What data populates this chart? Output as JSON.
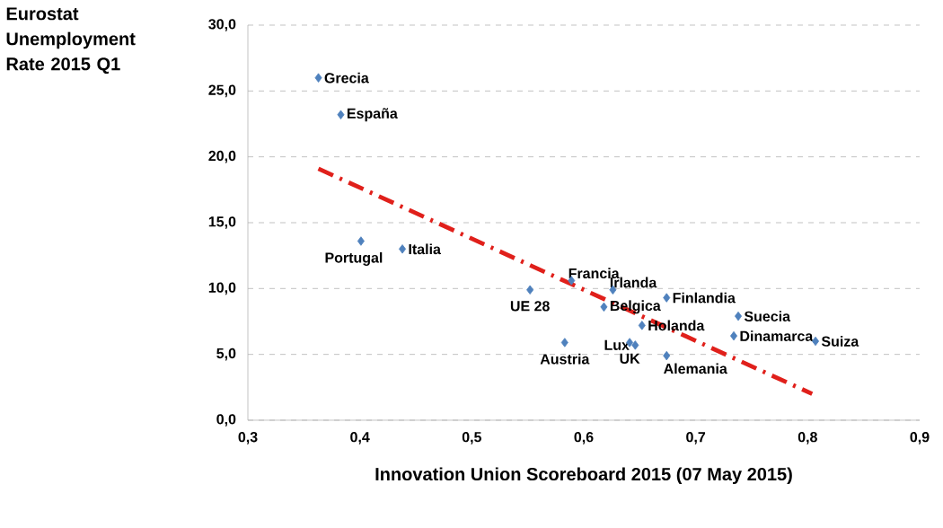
{
  "chart_data": {
    "type": "scatter",
    "ylabel": "Eurostat Unemployment Rate 2015 Q1",
    "xlabel": "Innovation Union Scoreboard 2015  (07 May 2015)",
    "xlim": [
      0.3,
      0.9
    ],
    "xticks": [
      {
        "value": 0.3,
        "label": "0,3"
      },
      {
        "value": 0.4,
        "label": "0,4"
      },
      {
        "value": 0.5,
        "label": "0,5"
      },
      {
        "value": 0.6,
        "label": "0,6"
      },
      {
        "value": 0.7,
        "label": "0,7"
      },
      {
        "value": 0.8,
        "label": "0,8"
      },
      {
        "value": 0.9,
        "label": "0,9"
      }
    ],
    "ylim": [
      0,
      30
    ],
    "yticks": [
      {
        "value": 0,
        "label": "0,0"
      },
      {
        "value": 5,
        "label": "5,0"
      },
      {
        "value": 10,
        "label": "10,0"
      },
      {
        "value": 15,
        "label": "15,0"
      },
      {
        "value": 20,
        "label": "20,0"
      },
      {
        "value": 25,
        "label": "25,0"
      },
      {
        "value": 30,
        "label": "30,0"
      }
    ],
    "grid": "y",
    "marker": "diamond",
    "series": [
      {
        "color": "#4f81bd",
        "x": [
          0.363,
          0.383,
          0.401,
          0.438,
          0.552,
          0.589,
          0.626,
          0.618,
          0.674,
          0.738,
          0.734,
          0.807,
          0.646,
          0.652,
          0.641,
          0.583,
          0.674
        ],
        "values": [
          26.0,
          23.2,
          13.6,
          13.0,
          9.9,
          10.6,
          9.9,
          8.6,
          9.3,
          7.9,
          6.4,
          6.0,
          5.7,
          7.2,
          5.9,
          5.9,
          4.9
        ]
      },
      {
        "type": "line",
        "color": "#e0201b",
        "line_style": "dashed",
        "marker": "none",
        "x": [
          0.363,
          0.804
        ],
        "values": [
          19.1,
          2.0
        ]
      }
    ],
    "annotations": [
      {
        "text": "Grecia",
        "x": 0.363,
        "y": 26.0
      },
      {
        "text": "España",
        "x": 0.383,
        "y": 23.2
      },
      {
        "text": "Portugal",
        "x": 0.401,
        "y": 13.6
      },
      {
        "text": "Italia",
        "x": 0.438,
        "y": 13.0
      },
      {
        "text": "UE 28",
        "x": 0.552,
        "y": 9.9
      },
      {
        "text": "Francia",
        "x": 0.589,
        "y": 10.6
      },
      {
        "text": "Irlanda",
        "x": 0.626,
        "y": 9.9
      },
      {
        "text": "Belgica",
        "x": 0.618,
        "y": 8.6
      },
      {
        "text": "Finlandia",
        "x": 0.674,
        "y": 9.3
      },
      {
        "text": "Suecia",
        "x": 0.738,
        "y": 7.9
      },
      {
        "text": "Dinamarca",
        "x": 0.734,
        "y": 6.4
      },
      {
        "text": "Suiza",
        "x": 0.807,
        "y": 6.0
      },
      {
        "text": "Lux",
        "x": 0.646,
        "y": 5.7
      },
      {
        "text": "Holanda",
        "x": 0.652,
        "y": 7.2
      },
      {
        "text": "UK",
        "x": 0.641,
        "y": 5.9
      },
      {
        "text": "Austria",
        "x": 0.583,
        "y": 5.9
      },
      {
        "text": "Alemania",
        "x": 0.674,
        "y": 4.9
      }
    ]
  }
}
